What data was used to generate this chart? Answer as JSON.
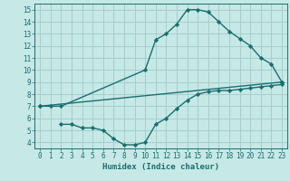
{
  "title": "",
  "xlabel": "Humidex (Indice chaleur)",
  "xlim": [
    -0.5,
    23.5
  ],
  "ylim": [
    3.5,
    15.5
  ],
  "xticks": [
    0,
    1,
    2,
    3,
    4,
    5,
    6,
    7,
    8,
    9,
    10,
    11,
    12,
    13,
    14,
    15,
    16,
    17,
    18,
    19,
    20,
    21,
    22,
    23
  ],
  "yticks": [
    4,
    5,
    6,
    7,
    8,
    9,
    10,
    11,
    12,
    13,
    14,
    15
  ],
  "bg_color": "#c6e8e6",
  "grid_color": "#a4cece",
  "line_color": "#1a6e6e",
  "curve1_x": [
    0,
    1,
    2,
    10,
    11,
    12,
    13,
    14,
    15,
    16,
    17,
    18,
    19,
    20,
    21,
    22,
    23
  ],
  "curve1_y": [
    7,
    7,
    7,
    10,
    12.5,
    13,
    13.8,
    15,
    15,
    14.8,
    14,
    13.2,
    12.6,
    12,
    11,
    10.5,
    9
  ],
  "curve2_x": [
    0,
    23
  ],
  "curve2_y": [
    7,
    9
  ],
  "curve3_x": [
    2,
    3,
    4,
    5,
    6,
    7,
    8,
    9,
    10,
    11,
    12,
    13,
    14,
    15,
    16,
    17,
    18,
    19,
    20,
    21,
    22,
    23
  ],
  "curve3_y": [
    5.5,
    5.5,
    5.2,
    5.2,
    5.0,
    4.3,
    3.8,
    3.8,
    4.0,
    5.5,
    6.0,
    6.8,
    7.5,
    8.0,
    8.2,
    8.3,
    8.3,
    8.4,
    8.5,
    8.6,
    8.7,
    8.8
  ],
  "xlabel_fontsize": 6.5,
  "tick_fontsize": 5.5
}
